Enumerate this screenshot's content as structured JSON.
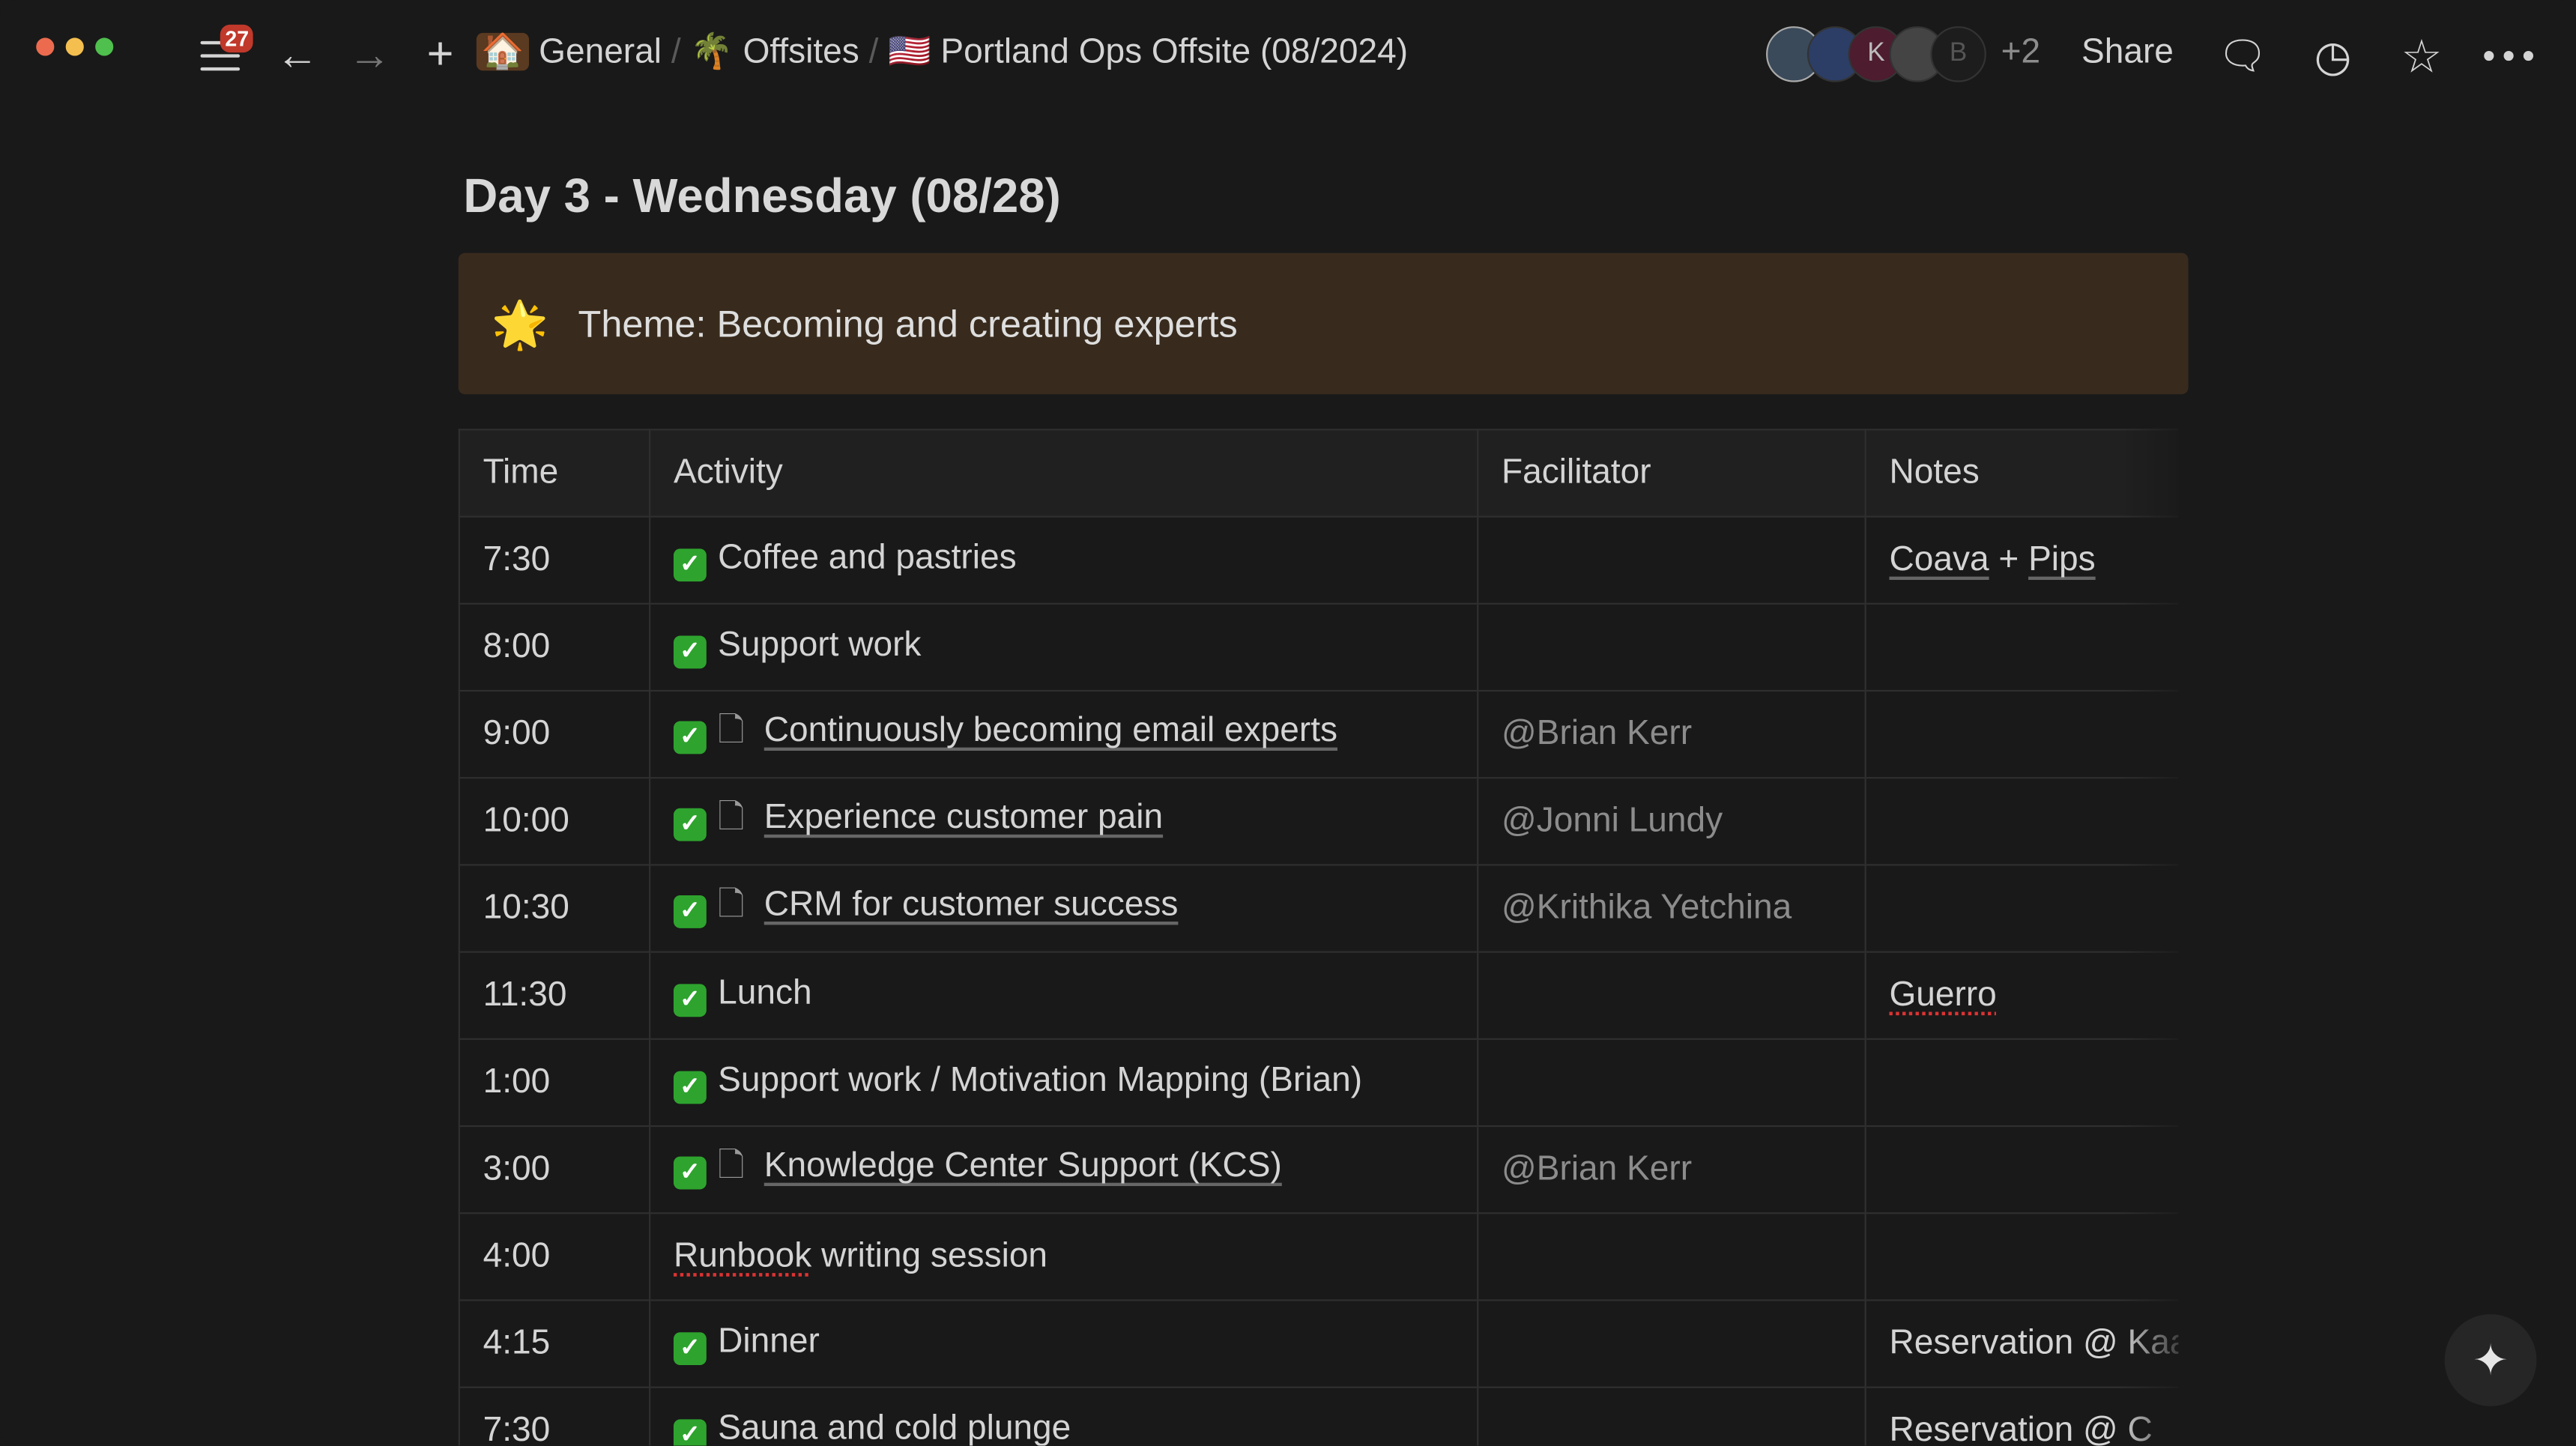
{
  "window": {
    "controls": [
      "close",
      "minimize",
      "zoom"
    ],
    "colors": {
      "close": "#ec6b4f",
      "minimize": "#f4bf4f",
      "zoom": "#4fbf4d"
    }
  },
  "topbar": {
    "notifications": "27",
    "breadcrumbs": [
      {
        "icon": "🏠",
        "label": "General"
      },
      {
        "icon": "🌴",
        "label": "Offsites"
      },
      {
        "icon": "🇺🇸",
        "label": "Portland Ops Offsite (08/2024)"
      }
    ],
    "avatars": [
      "",
      "",
      "K",
      "",
      "B"
    ],
    "more_count": "+2",
    "share": "Share"
  },
  "page": {
    "title": "Day 3 - Wednesday (08/28)",
    "callout": {
      "icon": "🌟",
      "text": "Theme: Becoming and creating experts"
    }
  },
  "table": {
    "headers": [
      "Time",
      "Activity",
      "Facilitator",
      "Notes"
    ],
    "rows": [
      {
        "time": "7:30",
        "done": true,
        "doc": false,
        "activity": "Coffee and pastries",
        "facilitator": "",
        "notes": [
          "Coava",
          " + ",
          "Pips"
        ]
      },
      {
        "time": "8:00",
        "done": true,
        "doc": false,
        "activity": "Support work",
        "facilitator": "",
        "notes": []
      },
      {
        "time": "9:00",
        "done": true,
        "doc": true,
        "activity": "Continuously becoming email experts",
        "facilitator": "@Brian Kerr",
        "notes": []
      },
      {
        "time": "10:00",
        "done": true,
        "doc": true,
        "activity": "Experience customer pain",
        "facilitator": "@Jonni Lundy",
        "notes": []
      },
      {
        "time": "10:30",
        "done": true,
        "doc": true,
        "activity": "CRM for customer success",
        "facilitator": "@Krithika Yetchina",
        "notes": []
      },
      {
        "time": "11:30",
        "done": true,
        "doc": false,
        "activity": "Lunch",
        "facilitator": "",
        "notes": [
          "Guerro"
        ]
      },
      {
        "time": "1:00",
        "done": true,
        "doc": false,
        "activity": "Support work / Motivation Mapping (Brian)",
        "facilitator": "",
        "notes": []
      },
      {
        "time": "3:00",
        "done": true,
        "doc": true,
        "activity": "Knowledge Center Support (KCS)",
        "facilitator": "@Brian Kerr",
        "notes": []
      },
      {
        "time": "4:00",
        "done": false,
        "doc": false,
        "activity": "Runbook writing session",
        "facilitator": "",
        "notes": []
      },
      {
        "time": "4:15",
        "done": true,
        "doc": false,
        "activity": "Dinner",
        "facilitator": "",
        "notes": [
          "Reservation @ Kaa"
        ]
      },
      {
        "time": "7:30",
        "done": true,
        "doc": false,
        "activity": "Sauna and cold plunge",
        "facilitator": "",
        "notes": [
          "Reservation @ C"
        ]
      }
    ]
  }
}
